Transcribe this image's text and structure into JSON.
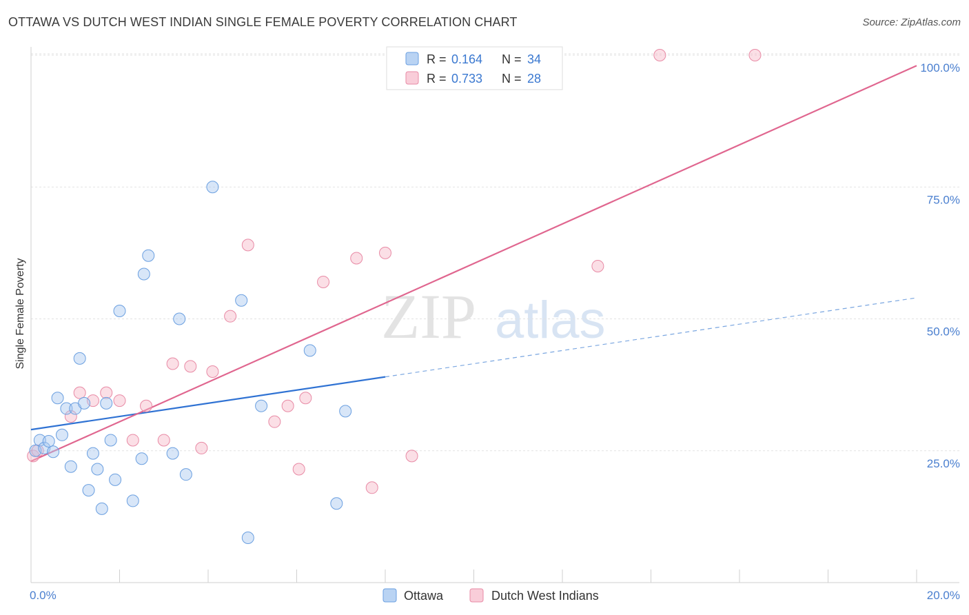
{
  "title": "OTTAWA VS DUTCH WEST INDIAN SINGLE FEMALE POVERTY CORRELATION CHART",
  "source": "Source: ZipAtlas.com",
  "watermark": {
    "zip": "ZIP",
    "atlas": "atlas"
  },
  "chart_data": {
    "type": "scatter",
    "title": "OTTAWA VS DUTCH WEST INDIAN SINGLE FEMALE POVERTY CORRELATION CHART",
    "xlabel": "",
    "ylabel": "Single Female Poverty",
    "xlim": [
      0,
      20
    ],
    "ylim": [
      0,
      105
    ],
    "x_tick_labels": [
      "0.0%",
      "20.0%"
    ],
    "y_ticks": [
      25,
      50,
      75,
      100
    ],
    "y_tick_labels": [
      "25.0%",
      "50.0%",
      "75.0%",
      "100.0%"
    ],
    "grid": true,
    "legend": [
      {
        "name": "Ottawa",
        "r_label": "R =",
        "r": "0.164",
        "n_label": "N =",
        "n": "34",
        "color": "#a8c8f0",
        "stroke": "#6a9fe0"
      },
      {
        "name": "Dutch West Indians",
        "r_label": "R =",
        "r": "0.733",
        "n_label": "N =",
        "n": "28",
        "color": "#f6b8c8",
        "stroke": "#e88aa5"
      }
    ],
    "series": [
      {
        "name": "Ottawa",
        "color": "#a8c8f0",
        "points": [
          [
            0.1,
            25.0
          ],
          [
            0.2,
            27.0
          ],
          [
            0.3,
            25.5
          ],
          [
            0.4,
            26.8
          ],
          [
            0.5,
            24.8
          ],
          [
            0.6,
            35.0
          ],
          [
            0.7,
            28.0
          ],
          [
            0.8,
            33.0
          ],
          [
            0.9,
            22.0
          ],
          [
            1.0,
            33.0
          ],
          [
            1.1,
            42.5
          ],
          [
            1.2,
            34.0
          ],
          [
            1.3,
            17.5
          ],
          [
            1.4,
            24.5
          ],
          [
            1.5,
            21.5
          ],
          [
            1.6,
            14.0
          ],
          [
            1.7,
            34.0
          ],
          [
            1.8,
            27.0
          ],
          [
            1.9,
            19.5
          ],
          [
            2.0,
            51.5
          ],
          [
            2.3,
            15.5
          ],
          [
            2.5,
            23.5
          ],
          [
            2.55,
            58.5
          ],
          [
            2.65,
            62.0
          ],
          [
            3.2,
            24.5
          ],
          [
            3.35,
            50.0
          ],
          [
            3.5,
            20.5
          ],
          [
            4.1,
            75.0
          ],
          [
            4.75,
            53.5
          ],
          [
            4.9,
            8.5
          ],
          [
            5.2,
            33.5
          ],
          [
            6.3,
            44.0
          ],
          [
            6.9,
            15.0
          ],
          [
            7.1,
            32.5
          ]
        ],
        "trend": {
          "x": [
            0,
            8.0
          ],
          "y": [
            29.0,
            39.0
          ],
          "dashed_to": [
            20,
            54.0
          ]
        }
      },
      {
        "name": "Dutch West Indians",
        "color": "#f6b8c8",
        "points": [
          [
            0.05,
            24.0
          ],
          [
            0.15,
            25.0
          ],
          [
            0.9,
            31.5
          ],
          [
            1.1,
            36.0
          ],
          [
            1.4,
            34.5
          ],
          [
            1.7,
            36.0
          ],
          [
            2.0,
            34.5
          ],
          [
            2.3,
            27.0
          ],
          [
            2.6,
            33.5
          ],
          [
            3.0,
            27.0
          ],
          [
            3.2,
            41.5
          ],
          [
            3.6,
            41.0
          ],
          [
            3.85,
            25.5
          ],
          [
            4.1,
            40.0
          ],
          [
            4.5,
            50.5
          ],
          [
            4.9,
            64.0
          ],
          [
            5.5,
            30.5
          ],
          [
            5.8,
            33.5
          ],
          [
            6.05,
            21.5
          ],
          [
            6.2,
            35.0
          ],
          [
            6.6,
            57.0
          ],
          [
            7.35,
            61.5
          ],
          [
            7.7,
            18.0
          ],
          [
            8.0,
            62.5
          ],
          [
            8.6,
            24.0
          ],
          [
            12.8,
            60.0
          ],
          [
            14.2,
            100.0
          ],
          [
            16.35,
            100.0
          ]
        ],
        "trend": {
          "x": [
            0,
            20
          ],
          "y": [
            23.0,
            98.0
          ]
        }
      }
    ]
  }
}
